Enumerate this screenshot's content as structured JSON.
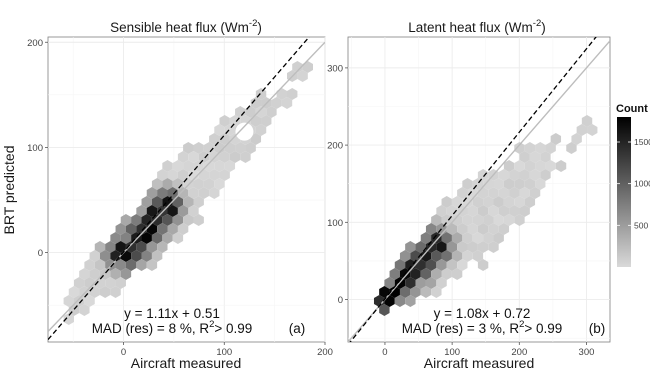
{
  "figure": {
    "ylabel": "BRT predicted",
    "legend": {
      "title": "Count",
      "ticks": [
        500,
        1000,
        1500
      ],
      "range": [
        0,
        1800
      ],
      "colors": [
        "#d9d9d9",
        "#000000"
      ]
    }
  },
  "chart_data": [
    {
      "type": "heatmap",
      "subtype": "hexbin-scatter",
      "title": "Sensible heat flux (Wm",
      "title_sup": "-2",
      "title_end": ")",
      "xlabel": "Aircraft measured",
      "ylabel": "BRT predicted",
      "xlim": [
        -75,
        200
      ],
      "ylim": [
        -85,
        205
      ],
      "xticks": [
        0,
        100,
        200
      ],
      "yticks": [
        0,
        100,
        200
      ],
      "grid": true,
      "panel_tag": "(a)",
      "reference_lines": {
        "identity": {
          "slope": 1,
          "intercept": 0,
          "style": "solid",
          "color": "#bdbdbd"
        },
        "fit": {
          "slope": 1.11,
          "intercept": 0.51,
          "style": "dashed",
          "color": "#000000"
        }
      },
      "equation": "y = 1.11x + 0.51",
      "mad_label": "MAD (res) = 8 %, R",
      "mad_sup": "2",
      "mad_end": "> 0.99",
      "hex_radius": 6,
      "cloud": {
        "xmin": -55,
        "xmax": 185,
        "slope": 0.95,
        "intercept": 0,
        "half_width_min": 14,
        "half_width_max": 42
      },
      "core": [
        [
          0,
          -2
        ],
        [
          8,
          5
        ],
        [
          15,
          14
        ],
        [
          25,
          25
        ],
        [
          35,
          36
        ],
        [
          42,
          44
        ]
      ]
    },
    {
      "type": "heatmap",
      "subtype": "hexbin-scatter",
      "title": "Latent heat flux (Wm",
      "title_sup": "-2",
      "title_end": ")",
      "xlabel": "Aircraft measured",
      "ylabel": "",
      "xlim": [
        -55,
        335
      ],
      "ylim": [
        -55,
        340
      ],
      "xticks": [
        0,
        100,
        200,
        300
      ],
      "yticks": [
        0,
        100,
        200,
        300
      ],
      "grid": true,
      "panel_tag": "(b)",
      "reference_lines": {
        "identity": {
          "slope": 1,
          "intercept": 0,
          "style": "solid",
          "color": "#bdbdbd"
        },
        "fit": {
          "slope": 1.08,
          "intercept": 0.72,
          "style": "dashed",
          "color": "#000000"
        }
      },
      "equation": "y = 1.08x + 0.72",
      "mad_label": "MAD (res) = 3 %, R",
      "mad_sup": "2",
      "mad_end": "> 0.99",
      "hex_radius": 6,
      "cloud": {
        "xmin": -15,
        "xmax": 320,
        "slope": 0.72,
        "intercept": 5,
        "half_width_min": 12,
        "half_width_max": 62
      },
      "core": [
        [
          0,
          0
        ],
        [
          15,
          12
        ],
        [
          30,
          28
        ],
        [
          45,
          42
        ],
        [
          60,
          55
        ],
        [
          75,
          70
        ]
      ]
    }
  ]
}
